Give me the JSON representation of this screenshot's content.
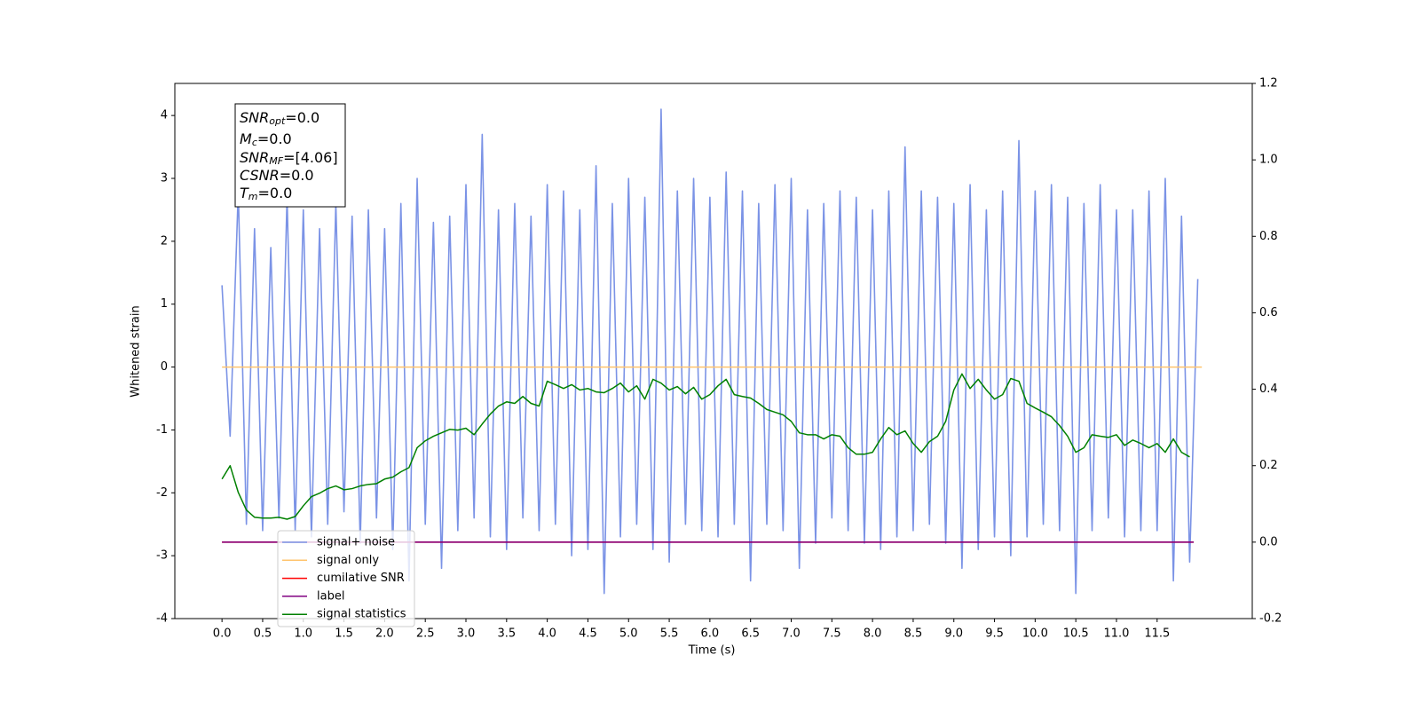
{
  "chart_data": {
    "type": "line",
    "xlabel": "Time (s)",
    "ylabel": "Whitened strain",
    "xlim": [
      -0.58,
      12.67
    ],
    "ylim": [
      -4,
      4.51
    ],
    "y2lim": [
      -0.2,
      1.2
    ],
    "xticks": [
      {
        "value": 0,
        "label": "0.0"
      },
      0.5,
      {
        "value": 1,
        "label": "1.0"
      },
      1.5,
      {
        "value": 2,
        "label": "2.0"
      },
      2.5,
      {
        "value": 3,
        "label": "3.0"
      },
      3.5,
      {
        "value": 4,
        "label": "4.0"
      },
      4.5,
      {
        "value": 5,
        "label": "5.0"
      },
      5.5,
      {
        "value": 6,
        "label": "6.0"
      },
      6.5,
      {
        "value": 7,
        "label": "7.0"
      },
      7.5,
      {
        "value": 8,
        "label": "8.0"
      },
      8.5,
      {
        "value": 9,
        "label": "9.0"
      },
      9.5,
      {
        "value": 10,
        "label": "10.0"
      },
      10.5,
      {
        "value": 11,
        "label": "11.0"
      },
      11.5
    ],
    "yticks": [
      -4,
      -3,
      -2,
      -1,
      0,
      1,
      2,
      3,
      4
    ],
    "y2ticks": [
      -0.2,
      {
        "value": 0,
        "label": "0.0"
      },
      0.2,
      0.4,
      0.6,
      0.8,
      {
        "value": 1,
        "label": "1.0"
      },
      1.2
    ],
    "legend": "lower left",
    "annotation": [
      {
        "main": "SNR",
        "sub": "opt",
        "text": "=0.0"
      },
      {
        "main": "M",
        "sub": "c",
        "text": "=0.0"
      },
      {
        "main": "SNR",
        "sub": "MF",
        "text": "=[4.06]"
      },
      {
        "main": "CSNR",
        "sub": "",
        "text": "=0.0"
      },
      {
        "main": "T",
        "sub": "m",
        "text": "=0.0"
      }
    ],
    "series": [
      {
        "name": "signal+ noise",
        "color": "#7b93e6",
        "axis": "y",
        "x": [
          0,
          0.1,
          0.2,
          0.3,
          0.4,
          0.5,
          0.6,
          0.7,
          0.8,
          0.9,
          1,
          1.1,
          1.2,
          1.3,
          1.4,
          1.5,
          1.6,
          1.7,
          1.8,
          1.9,
          2,
          2.1,
          2.2,
          2.3,
          2.4,
          2.5,
          2.6,
          2.7,
          2.8,
          2.9,
          3,
          3.1,
          3.2,
          3.3,
          3.4,
          3.5,
          3.6,
          3.7,
          3.8,
          3.9,
          4,
          4.1,
          4.2,
          4.3,
          4.4,
          4.5,
          4.6,
          4.7,
          4.8,
          4.9,
          5,
          5.1,
          5.2,
          5.3,
          5.4,
          5.5,
          5.6,
          5.7,
          5.8,
          5.9,
          6,
          6.1,
          6.2,
          6.3,
          6.4,
          6.5,
          6.6,
          6.7,
          6.8,
          6.9,
          7,
          7.1,
          7.2,
          7.3,
          7.4,
          7.5,
          7.6,
          7.7,
          7.8,
          7.9,
          8,
          8.1,
          8.2,
          8.3,
          8.4,
          8.5,
          8.6,
          8.7,
          8.8,
          8.9,
          9,
          9.1,
          9.2,
          9.3,
          9.4,
          9.5,
          9.6,
          9.7,
          9.8,
          9.9,
          10,
          10.1,
          10.2,
          10.3,
          10.4,
          10.5,
          10.6,
          10.7,
          10.8,
          10.9,
          11,
          11.1,
          11.2,
          11.3,
          11.4,
          11.5,
          11.6,
          11.7,
          11.8,
          11.9,
          12
        ],
        "values": [
          1.3,
          -1.1,
          2.8,
          -2.5,
          2.2,
          -2.6,
          1.9,
          -2.4,
          2.7,
          -2.6,
          2.5,
          -2.7,
          2.2,
          -2.5,
          2.6,
          -2.3,
          2.4,
          -2.8,
          2.5,
          -2.4,
          2.2,
          -2.9,
          2.6,
          -3.4,
          3.0,
          -2.5,
          2.3,
          -3.2,
          2.4,
          -2.6,
          2.9,
          -2.4,
          3.7,
          -2.7,
          2.5,
          -2.9,
          2.6,
          -2.4,
          2.4,
          -2.6,
          2.9,
          -2.5,
          2.8,
          -3.0,
          2.5,
          -2.9,
          3.2,
          -3.6,
          2.6,
          -2.7,
          3.0,
          -2.5,
          2.7,
          -2.9,
          4.1,
          -3.1,
          2.8,
          -2.5,
          3.0,
          -2.6,
          2.7,
          -2.7,
          3.1,
          -2.5,
          2.8,
          -3.4,
          2.6,
          -2.5,
          2.9,
          -2.6,
          3.0,
          -3.2,
          2.5,
          -2.8,
          2.6,
          -2.4,
          2.8,
          -2.6,
          2.7,
          -2.8,
          2.5,
          -2.9,
          2.8,
          -2.7,
          3.5,
          -2.6,
          2.8,
          -2.5,
          2.7,
          -2.8,
          2.6,
          -3.2,
          2.9,
          -2.9,
          2.5,
          -2.7,
          2.8,
          -3.0,
          3.6,
          -2.7,
          2.8,
          -2.5,
          2.9,
          -2.6,
          2.7,
          -3.6,
          2.6,
          -2.6,
          2.9,
          -2.4,
          2.5,
          -2.7,
          2.5,
          -2.6,
          2.8,
          -2.6,
          3.0,
          -3.4,
          2.4,
          -3.1,
          1.4
        ]
      },
      {
        "name": "signal only",
        "color": "#ffc46e",
        "axis": "y",
        "x": [
          0,
          12.05
        ],
        "values": [
          0,
          0
        ]
      },
      {
        "name": "cumilative SNR",
        "color": "#ff0000",
        "axis": "y2",
        "x": [
          0,
          11.95
        ],
        "values": [
          0,
          0
        ]
      },
      {
        "name": "label",
        "color": "#800080",
        "axis": "y2",
        "x": [
          0,
          11.95
        ],
        "values": [
          0,
          0
        ]
      },
      {
        "name": "signal statistics",
        "color": "#008000",
        "axis": "y2",
        "x": [
          0,
          0.1,
          0.2,
          0.3,
          0.4,
          0.5,
          0.6,
          0.7,
          0.8,
          0.9,
          1,
          1.1,
          1.2,
          1.3,
          1.4,
          1.5,
          1.6,
          1.7,
          1.8,
          1.9,
          2,
          2.1,
          2.2,
          2.3,
          2.4,
          2.5,
          2.6,
          2.7,
          2.8,
          2.9,
          3,
          3.1,
          3.2,
          3.3,
          3.4,
          3.5,
          3.6,
          3.7,
          3.8,
          3.9,
          4,
          4.1,
          4.2,
          4.3,
          4.4,
          4.5,
          4.6,
          4.7,
          4.8,
          4.9,
          5,
          5.1,
          5.2,
          5.3,
          5.4,
          5.5,
          5.6,
          5.7,
          5.8,
          5.9,
          6,
          6.1,
          6.2,
          6.3,
          6.4,
          6.5,
          6.6,
          6.7,
          6.8,
          6.9,
          7,
          7.1,
          7.2,
          7.3,
          7.4,
          7.5,
          7.6,
          7.7,
          7.8,
          7.9,
          8,
          8.1,
          8.2,
          8.3,
          8.4,
          8.5,
          8.6,
          8.7,
          8.8,
          8.9,
          9,
          9.1,
          9.2,
          9.3,
          9.4,
          9.5,
          9.6,
          9.7,
          9.8,
          9.9,
          10,
          10.1,
          10.2,
          10.3,
          10.4,
          10.5,
          10.6,
          10.7,
          10.8,
          10.9,
          11,
          11.1,
          11.2,
          11.3,
          11.4,
          11.5,
          11.6,
          11.7,
          11.8,
          11.9
        ],
        "values": [
          0.165,
          0.2,
          0.13,
          0.084,
          0.065,
          0.063,
          0.063,
          0.065,
          0.06,
          0.067,
          0.095,
          0.119,
          0.128,
          0.14,
          0.147,
          0.137,
          0.14,
          0.147,
          0.151,
          0.153,
          0.165,
          0.17,
          0.184,
          0.195,
          0.247,
          0.265,
          0.277,
          0.286,
          0.295,
          0.293,
          0.298,
          0.281,
          0.309,
          0.335,
          0.356,
          0.367,
          0.363,
          0.381,
          0.363,
          0.356,
          0.421,
          0.412,
          0.402,
          0.412,
          0.398,
          0.402,
          0.393,
          0.391,
          0.402,
          0.416,
          0.393,
          0.409,
          0.374,
          0.426,
          0.416,
          0.398,
          0.407,
          0.388,
          0.405,
          0.374,
          0.386,
          0.409,
          0.426,
          0.386,
          0.381,
          0.377,
          0.363,
          0.347,
          0.34,
          0.333,
          0.316,
          0.286,
          0.281,
          0.281,
          0.27,
          0.281,
          0.277,
          0.247,
          0.23,
          0.23,
          0.235,
          0.27,
          0.3,
          0.281,
          0.291,
          0.258,
          0.235,
          0.263,
          0.277,
          0.316,
          0.398,
          0.44,
          0.402,
          0.426,
          0.398,
          0.374,
          0.386,
          0.428,
          0.421,
          0.363,
          0.351,
          0.34,
          0.328,
          0.305,
          0.277,
          0.235,
          0.247,
          0.281,
          0.277,
          0.274,
          0.281,
          0.253,
          0.267,
          0.258,
          0.247,
          0.258,
          0.235,
          0.27,
          0.235,
          0.223
        ]
      }
    ]
  }
}
